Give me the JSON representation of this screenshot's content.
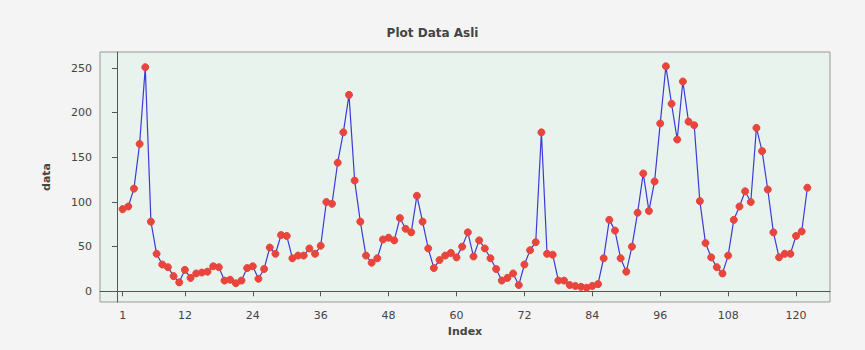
{
  "chart_data": {
    "type": "line",
    "title": "Plot Data Asli",
    "x_label": "Index",
    "y_label": "data",
    "x": [
      1,
      2,
      3,
      4,
      5,
      6,
      7,
      8,
      9,
      10,
      11,
      12,
      13,
      14,
      15,
      16,
      17,
      18,
      19,
      20,
      21,
      22,
      23,
      24,
      25,
      26,
      27,
      28,
      29,
      30,
      31,
      32,
      33,
      34,
      35,
      36,
      37,
      38,
      39,
      40,
      41,
      42,
      43,
      44,
      45,
      46,
      47,
      48,
      49,
      50,
      51,
      52,
      53,
      54,
      55,
      56,
      57,
      58,
      59,
      60,
      61,
      62,
      63,
      64,
      65,
      66,
      67,
      68,
      69,
      70,
      71,
      72,
      73,
      74,
      75,
      76,
      77,
      78,
      79,
      80,
      81,
      82,
      83,
      84,
      85,
      86,
      87,
      88,
      89,
      90,
      91,
      92,
      93,
      94,
      95,
      96,
      97,
      98,
      99,
      100,
      101,
      102,
      103,
      104,
      105,
      106,
      107,
      108,
      109,
      110,
      111,
      112,
      113,
      114,
      115,
      116,
      117,
      118,
      119,
      120,
      121,
      122
    ],
    "values": [
      92,
      95,
      115,
      165,
      251,
      78,
      42,
      30,
      27,
      17,
      10,
      24,
      15,
      20,
      21,
      22,
      28,
      27,
      12,
      13,
      9,
      12,
      26,
      28,
      14,
      25,
      49,
      42,
      63,
      62,
      37,
      40,
      40,
      48,
      42,
      51,
      100,
      98,
      144,
      178,
      220,
      124,
      78,
      40,
      32,
      37,
      58,
      60,
      57,
      82,
      70,
      66,
      107,
      78,
      48,
      26,
      35,
      40,
      43,
      38,
      50,
      66,
      39,
      57,
      48,
      37,
      25,
      12,
      15,
      20,
      7,
      30,
      46,
      55,
      178,
      42,
      41,
      12,
      12,
      7,
      6,
      5,
      4,
      6,
      8,
      37,
      80,
      68,
      37,
      22,
      50,
      88,
      132,
      90,
      123,
      188,
      252,
      210,
      170,
      235,
      190,
      186,
      101,
      54,
      38,
      27,
      20,
      40,
      80,
      95,
      112,
      100,
      183,
      157,
      114,
      66,
      38,
      42,
      42,
      62,
      67,
      116
    ],
    "color": "#3a3ad6",
    "marker": "circle",
    "xlim": [
      -3,
      126
    ],
    "xticks": [
      1,
      12,
      24,
      36,
      48,
      60,
      72,
      84,
      96,
      108,
      120
    ],
    "ylim": [
      -12,
      268
    ],
    "yticks": [
      0,
      50,
      100,
      150,
      200,
      250
    ],
    "grid": false
  }
}
